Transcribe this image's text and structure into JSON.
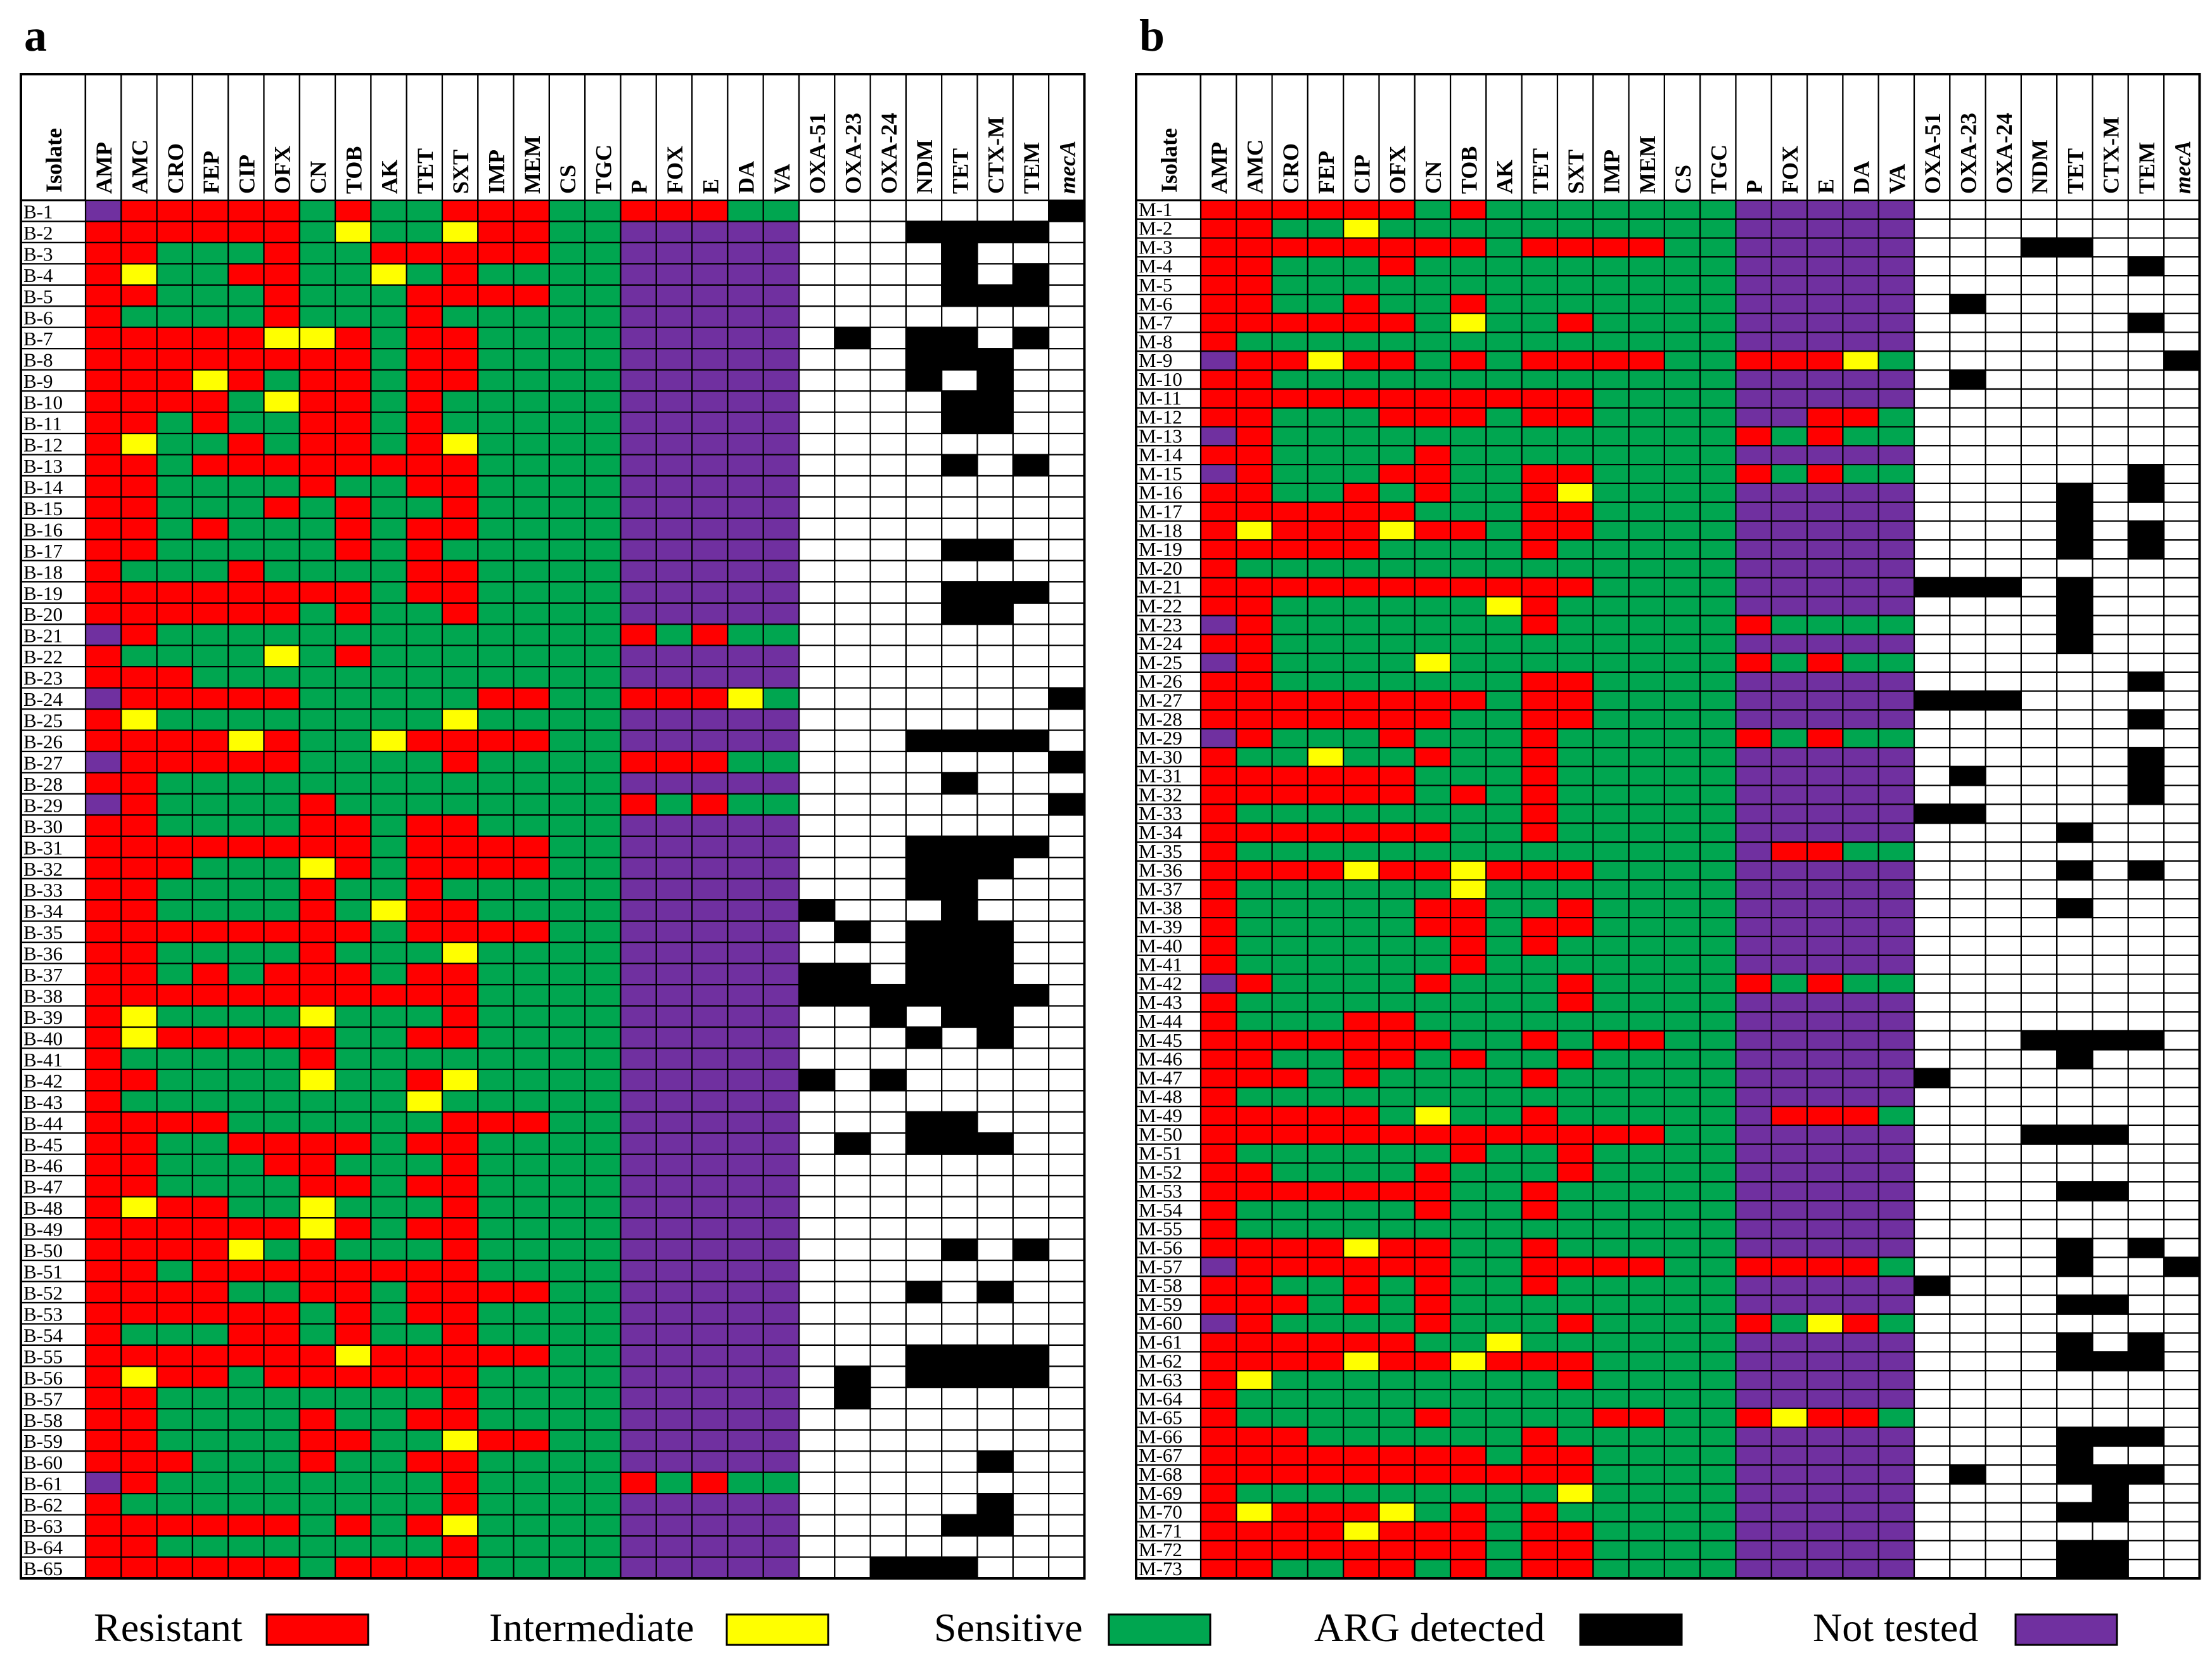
{
  "panels": [
    {
      "letter": "a",
      "header_label": "Isolate",
      "columns": [
        "AMP",
        "AMC",
        "CRO",
        "FEP",
        "CIP",
        "OFX",
        "CN",
        "TOB",
        "AK",
        "TET",
        "SXT",
        "IMP",
        "MEM",
        "CS",
        "TGC",
        "P",
        "FOX",
        "E",
        "DA",
        "VA",
        "OXA-51",
        "OXA-23",
        "OXA-24",
        "NDM",
        "TET",
        "CTX-M",
        "TEM",
        "mecA"
      ],
      "italic_columns": [
        "mecA"
      ],
      "rows": [
        {
          "id": "B-1",
          "v": "NRRRRRSRSSRRRSSRRRSSWWWWWWWA"
        },
        {
          "id": "B-2",
          "v": "RRRRRRSISSIRRSSNNNNNWWWAAAAW"
        },
        {
          "id": "B-3",
          "v": "RRSSSRSSRRRRRSSNNNNNWWWWAWWW"
        },
        {
          "id": "B-4",
          "v": "RISSRRSSISRSSSSNNNNNWWWWAWAW"
        },
        {
          "id": "B-5",
          "v": "RRSSSRSSSRRRRSSNNNNNWWWWAAAW"
        },
        {
          "id": "B-6",
          "v": "RSSSSRSSSRSSSSSNNNNNWWWWWWWW"
        },
        {
          "id": "B-7",
          "v": "RRRRRIIRSRRSSSSNNNNNWAWAAWAW"
        },
        {
          "id": "B-8",
          "v": "RRRRRRRRSRRSSSSNNNNNWWWAAAWW"
        },
        {
          "id": "B-9",
          "v": "RRRIRSRRSRRSSSSNNNNNWWWAWAWW"
        },
        {
          "id": "B-10",
          "v": "RRRRSIRRSRSSSSSNNNNNWWWWAAWW"
        },
        {
          "id": "B-11",
          "v": "RRSRSSRRSRSSSSSNNNNNWWWWAAWW"
        },
        {
          "id": "B-12",
          "v": "RISSRSRRSRISSSSNNNNNWWWWWWWW"
        },
        {
          "id": "B-13",
          "v": "RRSRRRRRRRRSSSSNNNNNWWWWAWAW"
        },
        {
          "id": "B-14",
          "v": "RRSSSSRSSRRSSSSNNNNNWWWWWWWW"
        },
        {
          "id": "B-15",
          "v": "RRSSSRSRSSRSSSSNNNNNWWWWWWWW"
        },
        {
          "id": "B-16",
          "v": "RRSRSSSRSRRSSSSNNNNNWWWWWWWW"
        },
        {
          "id": "B-17",
          "v": "RRSSSSSRSRSSSSSNNNNNWWWWAAWW"
        },
        {
          "id": "B-18",
          "v": "RSSSRSSSSRRSSSSNNNNNWWWWWWWW"
        },
        {
          "id": "B-19",
          "v": "RRRRRRRRSRRSSSSNNNNNWWWWAAAW"
        },
        {
          "id": "B-20",
          "v": "RRRRRRSRSSRSSSSNNNNNWWWWAAWW"
        },
        {
          "id": "B-21",
          "v": "NRSSSSSSSSSSSSSRSRSSWWWWWWWW"
        },
        {
          "id": "B-22",
          "v": "RSSSSISRSSSSSSSNNNNNWWWWWWWW"
        },
        {
          "id": "B-23",
          "v": "RRRSSSSSSSSSSSSNNNNNWWWWWWWW"
        },
        {
          "id": "B-24",
          "v": "NRRRRRSSSSSRRSSRRRISWWWWWWWA"
        },
        {
          "id": "B-25",
          "v": "RISSSSSSSSISSSSNNNNNWWWWWWWW"
        },
        {
          "id": "B-26",
          "v": "RRRRIRSSIRRRRSSNNNNNWWWAAAAW"
        },
        {
          "id": "B-27",
          "v": "NRRRRRSSSSRSSSSRRRSSWWWWWWWA"
        },
        {
          "id": "B-28",
          "v": "RRSSSSSSSSSSSSSNNNNNWWWWAWWW"
        },
        {
          "id": "B-29",
          "v": "NRSSSSRSSSSSSSSRSRSSWWWWWWWA"
        },
        {
          "id": "B-30",
          "v": "RRSSSSRRSRRSSSSNNNNNWWWWWWWW"
        },
        {
          "id": "B-31",
          "v": "RRRRRRRRSRRRRSSNNNNNWWWAAAAW"
        },
        {
          "id": "B-32",
          "v": "RRRSSSIRSRRRRSSNNNNNWWWAAAWW"
        },
        {
          "id": "B-33",
          "v": "RRSSSSRSSRSSSSSNNNNNWWWAAWWW"
        },
        {
          "id": "B-34",
          "v": "RRSSSSRSIRRSSSSNNNNNAWWWAWWW"
        },
        {
          "id": "B-35",
          "v": "RRRRRRRRSRRRRSSNNNNNWAWAAAWW"
        },
        {
          "id": "B-36",
          "v": "RRSSSSRSSSISSSSNNNNNWWWAAAWW"
        },
        {
          "id": "B-37",
          "v": "RRSRSRRRSRRSSSSNNNNNAAWAAAWW"
        },
        {
          "id": "B-38",
          "v": "RRRRRRRRRRRSSSSNNNNNAAAAAAAW"
        },
        {
          "id": "B-39",
          "v": "RISSSSISSSRSSSSNNNNNWWAWAAWW"
        },
        {
          "id": "B-40",
          "v": "RIRRRRRSSRRSSSSNNNNNWWWAWAWW"
        },
        {
          "id": "B-41",
          "v": "RSSSSSRSSSSSSSSNNNNNWWWWWWWW"
        },
        {
          "id": "B-42",
          "v": "RRSSSSISSRISSSSNNNNNAWAWWWWW"
        },
        {
          "id": "B-43",
          "v": "RSSSSSSSSISSSSSNNNNNWWWWWWWW"
        },
        {
          "id": "B-44",
          "v": "RRRRSSSSSSRRRSSNNNNNWWWAAWWW"
        },
        {
          "id": "B-45",
          "v": "RRSSRRRRSRRSSSSNNNNNWAWAAAWW"
        },
        {
          "id": "B-46",
          "v": "RRSSSRRSSSRSSSSNNNNNWWWWWWWW"
        },
        {
          "id": "B-47",
          "v": "RRSSSSRRSRRSSSSNNNNNWWWWWWWW"
        },
        {
          "id": "B-48",
          "v": "RIRRSSISSSRSSSSNNNNNWWWWWWWW"
        },
        {
          "id": "B-49",
          "v": "RRRRRRIRSRRSSSSNNNNNWWWWWWWW"
        },
        {
          "id": "B-50",
          "v": "RRRRISRSSSRSSSSNNNNNWWWWAWAW"
        },
        {
          "id": "B-51",
          "v": "RRSRRRRRRRRSSSSNNNNNWWWWWWWW"
        },
        {
          "id": "B-52",
          "v": "RRRRSSRRSRRRRSSNNNNNWWWAWAWW"
        },
        {
          "id": "B-53",
          "v": "RRRRRRSRSRRSSSSNNNNNWWWWWWWW"
        },
        {
          "id": "B-54",
          "v": "RSSSRRSRSSRSSSSNNNNNWWWWWWWW"
        },
        {
          "id": "B-55",
          "v": "RRRRRRRIRRRRRSSNNNNNWWWAAAAW"
        },
        {
          "id": "B-56",
          "v": "RIRRSRRRRRRSSSSNNNNNWAWAAAAW"
        },
        {
          "id": "B-57",
          "v": "RRSSSSSSSSRSSSSNNNNNWAWWWWWW"
        },
        {
          "id": "B-58",
          "v": "RRSSSSRSSRRSSSSNNNNNWWWWWWWW"
        },
        {
          "id": "B-59",
          "v": "RRSSSSRRSSIRRSSNNNNNWWWWWWWW"
        },
        {
          "id": "B-60",
          "v": "RRRSSSRSSRRSSSSNNNNNWWWWWAWW"
        },
        {
          "id": "B-61",
          "v": "NRSSSSSSSSRSSSSRSRSSWWWWWWWW"
        },
        {
          "id": "B-62",
          "v": "RSSSSSSSSSRSSSSNNNNNWWWWWAWW"
        },
        {
          "id": "B-63",
          "v": "RRRRRRSRSRISSSSNNNNNWWWWAAWW"
        },
        {
          "id": "B-64",
          "v": "RRSSSSSSSSRSSSSNNNNNWWWWWWWW"
        },
        {
          "id": "B-65",
          "v": "RRRRRRSRRRRSSSSNNNNNWWAAAWWW"
        }
      ]
    },
    {
      "letter": "b",
      "header_label": "Isolate",
      "columns": [
        "AMP",
        "AMC",
        "CRO",
        "FEP",
        "CIP",
        "OFX",
        "CN",
        "TOB",
        "AK",
        "TET",
        "SXT",
        "IMP",
        "MEM",
        "CS",
        "TGC",
        "P",
        "FOX",
        "E",
        "DA",
        "VA",
        "OXA-51",
        "OXA-23",
        "OXA-24",
        "NDM",
        "TET",
        "CTX-M",
        "TEM",
        "mecA"
      ],
      "italic_columns": [
        "mecA"
      ],
      "rows": [
        {
          "id": "M-1",
          "v": "RRRRRRSRSSSSSSSNNNNNWWWWWWWW"
        },
        {
          "id": "M-2",
          "v": "RRSSISSSSSSSSSSNNNNNWWWWWWWW"
        },
        {
          "id": "M-3",
          "v": "RRRRRRRRSRRRRSSNNNNNWWWAAWWW"
        },
        {
          "id": "M-4",
          "v": "RRSSSRSSSSSSSSSNNNNNWWWWWWAW"
        },
        {
          "id": "M-5",
          "v": "RRSSSSSSSSSSSSSNNNNNWWWWWWWW"
        },
        {
          "id": "M-6",
          "v": "RRSSRSSRSSSSSSSNNNNNWAWWWWWW"
        },
        {
          "id": "M-7",
          "v": "RRRRRRSISSRSSSSNNNNNWWWWWWAW"
        },
        {
          "id": "M-8",
          "v": "RSSSSSSSSSSSSSSNNNNNWWWWWWWW"
        },
        {
          "id": "M-9",
          "v": "NRRIRRSRSRRRRSSRRRISWWWWWWWA"
        },
        {
          "id": "M-10",
          "v": "RRSSSSSSSSSSSSSNNNNNWAWWWWWW"
        },
        {
          "id": "M-11",
          "v": "RRRRRRRRRRRSSSSNNNNNWWWWWWWW"
        },
        {
          "id": "M-12",
          "v": "RRSSSRRRSRRSSSSNNRRSWWWWWWWW"
        },
        {
          "id": "M-13",
          "v": "NRSSSSSSSSSSSSSRSRSSWWWWWWWW"
        },
        {
          "id": "M-14",
          "v": "RRSSSSRSSSSSSSSNNNNNWWWWWWWW"
        },
        {
          "id": "M-15",
          "v": "NRSSSRRSSRRSSSSRSRSSWWWWWWAW"
        },
        {
          "id": "M-16",
          "v": "RRSSRSRSSRISSSSNNNNNWWWWAWAW"
        },
        {
          "id": "M-17",
          "v": "RRRRRRSSSRRSSSSNNNNNWWWWAWWW"
        },
        {
          "id": "M-18",
          "v": "RIRRRIRRSRRSSSSNNNNNWWWWAWAW"
        },
        {
          "id": "M-19",
          "v": "RRRRRSSSSRSSSSSNNNNNWWWWAWAW"
        },
        {
          "id": "M-20",
          "v": "RSSSSSSSSSSSSSSNNNNNWWWWWWWW"
        },
        {
          "id": "M-21",
          "v": "RRRRRRRRRRRSSSSNNNNNAAAWAWWW"
        },
        {
          "id": "M-22",
          "v": "RRSSSSSSIRSSSSSNNNNNWWWWAWWW"
        },
        {
          "id": "M-23",
          "v": "NRSSSSSSSRSSSSSRSSSSWWWWAWWW"
        },
        {
          "id": "M-24",
          "v": "RRSSSSSSSSSSSSSNNNNNWWWWAWWW"
        },
        {
          "id": "M-25",
          "v": "NRSSSSISSSSSSSSRSRSSWWWWWWWW"
        },
        {
          "id": "M-26",
          "v": "RRSSSSSSSRRSSSSNNNNNWWWWWWAW"
        },
        {
          "id": "M-27",
          "v": "RRRRRRRRSRRSSSSNNNNNAAAWWWWW"
        },
        {
          "id": "M-28",
          "v": "RRRRRRRSSRRSSSSNNNNNWWWWWWAW"
        },
        {
          "id": "M-29",
          "v": "NRSSSRSSSRSSSSSRSRSSWWWWWWWW"
        },
        {
          "id": "M-30",
          "v": "RSSISSRSSRSSSSSNNNNNWWWWWWAW"
        },
        {
          "id": "M-31",
          "v": "RRRRRRSSSRSSSSSNNNNNWAWWWWAW"
        },
        {
          "id": "M-32",
          "v": "RRRRRRSRSRSSSSSNNNNNWWWWWWAW"
        },
        {
          "id": "M-33",
          "v": "RSSSSSSSSRSSSSSNNNNNAAWWWWWW"
        },
        {
          "id": "M-34",
          "v": "RRRRRRRSSRSSSSSNNNNNWWWWAWWW"
        },
        {
          "id": "M-35",
          "v": "RSSSSSSSSSSSSSSNRRSSWWWWWWWW"
        },
        {
          "id": "M-36",
          "v": "RRRRIRRIRRRSSSSNNNNNWWWWAWAW"
        },
        {
          "id": "M-37",
          "v": "RSSSSSSISSSSSSSNNNNNWWWWWWWW"
        },
        {
          "id": "M-38",
          "v": "RSSSSSRRSSRSSSSNNNNNWWWWAWWW"
        },
        {
          "id": "M-39",
          "v": "RSSSSSRRSRRSSSSNNNNNWWWWWWWW"
        },
        {
          "id": "M-40",
          "v": "RSSSSSSRSRSSSSSNNNNNWWWWWWWW"
        },
        {
          "id": "M-41",
          "v": "RSSSSSSRSSSSSSSNNNNNWWWWWWWW"
        },
        {
          "id": "M-42",
          "v": "NRSSSSRSSSRSSSSRSRSSWWWWWWWW"
        },
        {
          "id": "M-43",
          "v": "RSSSSSSSSSRSSSSNNNNNWWWWWWWW"
        },
        {
          "id": "M-44",
          "v": "RSSSRRSSSSSSSSSNNNNNWWWWWWWW"
        },
        {
          "id": "M-45",
          "v": "RRRRRRRSSRSRRSSNNNNNWWWAAAAW"
        },
        {
          "id": "M-46",
          "v": "RRSSRRSRSSRSSSSNNNNNWWWWAWWW"
        },
        {
          "id": "M-47",
          "v": "RRRSRSSSSRSSSSSNNNNNAWWWWWWW"
        },
        {
          "id": "M-48",
          "v": "RSSSSSSSSSSSSSSNNNNNWWWWWWWW"
        },
        {
          "id": "M-49",
          "v": "RRRRRSISSRSSSSSNRRRSWWWWWWWW"
        },
        {
          "id": "M-50",
          "v": "RRRRRRRRRRRRRSSNNNNNWWWAAAWW"
        },
        {
          "id": "M-51",
          "v": "RSSSSSSRSSRSSSSNNNNNWWWWWWWW"
        },
        {
          "id": "M-52",
          "v": "RRSSSSRSSSRSSSSNNNNNWWWWWWWW"
        },
        {
          "id": "M-53",
          "v": "RRRRRRRSSRSSSSSNNNNNWWWWAAWW"
        },
        {
          "id": "M-54",
          "v": "RSSSSSRSSRSSSSSNNNNNWWWWWWWW"
        },
        {
          "id": "M-55",
          "v": "RSSSSSSSSSSSSSSNNNNNWWWWWWWW"
        },
        {
          "id": "M-56",
          "v": "RRRRIRRSSRSSSSSNNNNNWWWWAWAW"
        },
        {
          "id": "M-57",
          "v": "NRRRRRRSSRRRRSSRRRRSWWWWAWWA"
        },
        {
          "id": "M-58",
          "v": "RRSSRSRSSRSSSSSNNNNNAWWWWWWW"
        },
        {
          "id": "M-59",
          "v": "RRRSRSRSSSSSSSSNNNNNWWWWAAWW"
        },
        {
          "id": "M-60",
          "v": "NRSSSSRSSSRSSSSRSIRSWWWWWWWW"
        },
        {
          "id": "M-61",
          "v": "RRRRRRSSISSSSSSNNNNNWWWWAWAW"
        },
        {
          "id": "M-62",
          "v": "RRRRIRRIRRRSSSSNNNNNWWWWAAAW"
        },
        {
          "id": "M-63",
          "v": "RISSSSSSSSRSSSSNNNNNWWWWWWWW"
        },
        {
          "id": "M-64",
          "v": "RSSSSSSSSSSSSSSNNNNNWWWWWWWW"
        },
        {
          "id": "M-65",
          "v": "RSSSSSRSSSSRRSSRIRRSWWWWWWWW"
        },
        {
          "id": "M-66",
          "v": "RRRSSSSSSRSSSSSNNNNNWWWWAAAW"
        },
        {
          "id": "M-67",
          "v": "RRRRRRRRSRRSSSSNNNNNWWWWAWWW"
        },
        {
          "id": "M-68",
          "v": "RRRRRRRRRRRSSSSNNNNNWAWWAAAW"
        },
        {
          "id": "M-69",
          "v": "RSSSSSSSSSISSSSNNNNNWWWWWAWW"
        },
        {
          "id": "M-70",
          "v": "RIRRRISRSRSSSSSNNNNNWWWWAAWW"
        },
        {
          "id": "M-71",
          "v": "RRRRIRRRSRRSSSSNNNNNWWWWWWWW"
        },
        {
          "id": "M-72",
          "v": "RRRRRRRRSRRSSSSNNNNNWWWWAAWW"
        },
        {
          "id": "M-73",
          "v": "RRSSRRSRSRRSSSSNNNNNWWWWAAWW"
        }
      ]
    }
  ],
  "codes": {
    "R": {
      "name": "Resistant",
      "color": "#ff0000"
    },
    "I": {
      "name": "Intermediate",
      "color": "#ffff00"
    },
    "S": {
      "name": "Sensitive",
      "color": "#00a650"
    },
    "A": {
      "name": "ARG detected",
      "color": "#000000"
    },
    "N": {
      "name": "Not tested",
      "color": "#7030a0"
    },
    "W": {
      "name": "",
      "color": "#ffffff"
    }
  },
  "legend": [
    {
      "label": "Resistant",
      "color": "#ff0000"
    },
    {
      "label": "Intermediate",
      "color": "#ffff00"
    },
    {
      "label": "Sensitive",
      "color": "#00a650"
    },
    {
      "label": "ARG detected",
      "color": "#000000"
    },
    {
      "label": "Not tested",
      "color": "#7030a0"
    }
  ],
  "chart_data": [
    {
      "type": "heatmap",
      "panel": "a",
      "x": [
        "AMP",
        "AMC",
        "CRO",
        "FEP",
        "CIP",
        "OFX",
        "CN",
        "TOB",
        "AK",
        "TET",
        "SXT",
        "IMP",
        "MEM",
        "CS",
        "TGC",
        "P",
        "FOX",
        "E",
        "DA",
        "VA",
        "OXA-51",
        "OXA-23",
        "OXA-24",
        "NDM",
        "TET",
        "CTX-M",
        "TEM",
        "mecA"
      ],
      "y_source": "panels.0.rows",
      "legend_placement": "bottom"
    },
    {
      "type": "heatmap",
      "panel": "b",
      "x": [
        "AMP",
        "AMC",
        "CRO",
        "FEP",
        "CIP",
        "OFX",
        "CN",
        "TOB",
        "AK",
        "TET",
        "SXT",
        "IMP",
        "MEM",
        "CS",
        "TGC",
        "P",
        "FOX",
        "E",
        "DA",
        "VA",
        "OXA-51",
        "OXA-23",
        "OXA-24",
        "NDM",
        "TET",
        "CTX-M",
        "TEM",
        "mecA"
      ],
      "y_source": "panels.1.rows",
      "legend_placement": "bottom"
    }
  ]
}
